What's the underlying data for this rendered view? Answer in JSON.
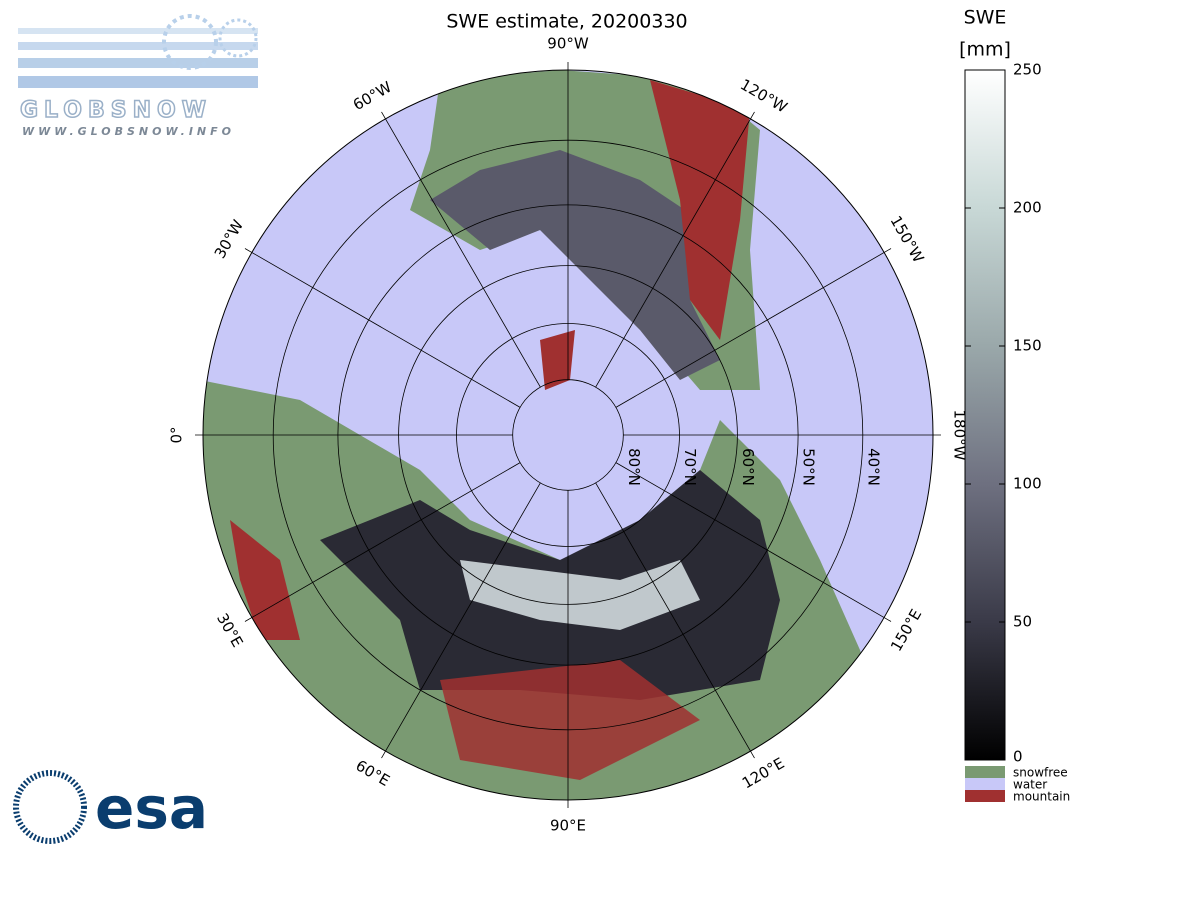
{
  "title": "SWE estimate, 20200330",
  "colorbar": {
    "label_top": "SWE",
    "label_unit": "[mm]",
    "lim": [
      0,
      250
    ],
    "ticks": [
      0,
      50,
      100,
      150,
      200,
      250
    ],
    "colors": [
      "#000000",
      "#3a3a48",
      "#6e7080",
      "#9aa8aa",
      "#c8d8d6",
      "#ffffff"
    ],
    "classes": [
      {
        "name": "snowfree",
        "color": "#7a9a72"
      },
      {
        "name": "water",
        "color": "#c8c8f8"
      },
      {
        "name": "mountain",
        "color": "#a03030"
      }
    ]
  },
  "map": {
    "meridians": [
      {
        "value": 0,
        "label": "0°"
      },
      {
        "value": 30,
        "label": "30°E"
      },
      {
        "value": 60,
        "label": "60°E"
      },
      {
        "value": 90,
        "label": "90°E"
      },
      {
        "value": 120,
        "label": "120°E"
      },
      {
        "value": 150,
        "label": "150°E"
      },
      {
        "value": 180,
        "label": "180°W"
      },
      {
        "value": -150,
        "label": "150°W"
      },
      {
        "value": -120,
        "label": "120°W"
      },
      {
        "value": -90,
        "label": "90°W"
      },
      {
        "value": -60,
        "label": "60°W"
      },
      {
        "value": -30,
        "label": "30°W"
      }
    ],
    "parallels": [
      {
        "value": 80,
        "label": "80°N"
      },
      {
        "value": 70,
        "label": "70°N"
      },
      {
        "value": 60,
        "label": "60°N"
      },
      {
        "value": 50,
        "label": "50°N"
      },
      {
        "value": 40,
        "label": "40°N"
      }
    ],
    "edge_lat": 30
  },
  "logos": {
    "globsnow": "GLOBSNOW",
    "globsnow_url": "WWW.GLOBSNOW.INFO",
    "esa": "esa"
  }
}
